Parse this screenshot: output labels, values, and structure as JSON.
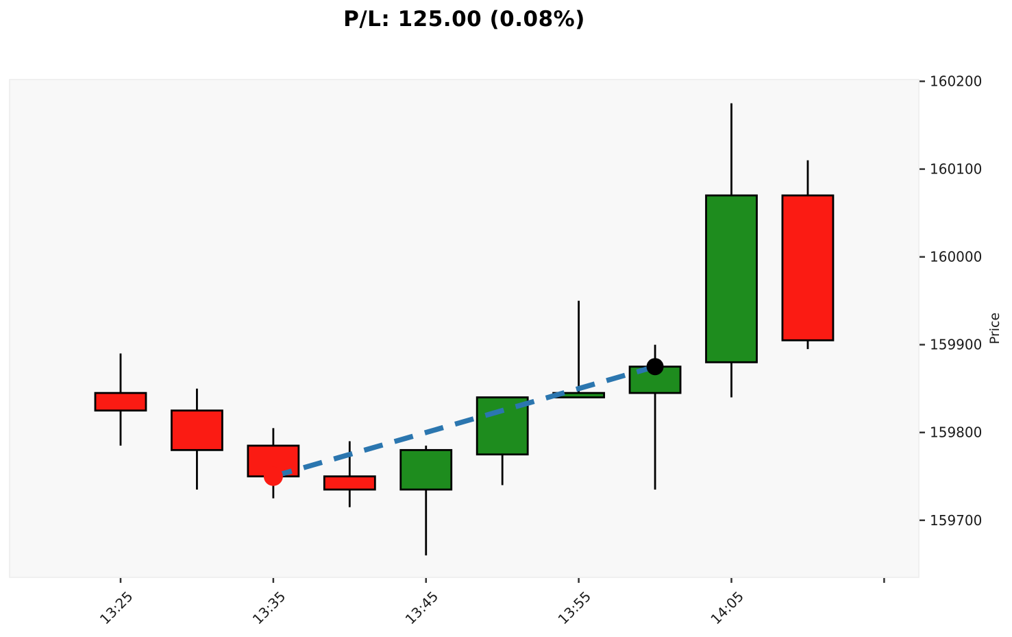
{
  "chart_data": {
    "type": "candlestick",
    "title": "P/L: 125.00 (0.08%)",
    "ylabel": "Price",
    "ylabel_side": "right",
    "grid": false,
    "legend": false,
    "y_ticks": [
      160200,
      160100,
      160000,
      159900,
      159800,
      159700
    ],
    "ylim": [
      159635,
      160202
    ],
    "x_ticks": [
      {
        "index": 0,
        "label": "13:25"
      },
      {
        "index": 2,
        "label": "13:35"
      },
      {
        "index": 4,
        "label": "13:45"
      },
      {
        "index": 6,
        "label": "13:55"
      },
      {
        "index": 8,
        "label": "14:05"
      },
      {
        "index": 10,
        "label": ""
      }
    ],
    "candles": [
      {
        "time": "13:25",
        "open": 159845,
        "high": 159890,
        "low": 159785,
        "close": 159825,
        "direction": "down"
      },
      {
        "time": "13:30",
        "open": 159825,
        "high": 159850,
        "low": 159735,
        "close": 159780,
        "direction": "down"
      },
      {
        "time": "13:35",
        "open": 159785,
        "high": 159805,
        "low": 159725,
        "close": 159750,
        "direction": "down"
      },
      {
        "time": "13:40",
        "open": 159750,
        "high": 159790,
        "low": 159715,
        "close": 159735,
        "direction": "down"
      },
      {
        "time": "13:45",
        "open": 159735,
        "high": 159785,
        "low": 159660,
        "close": 159780,
        "direction": "up"
      },
      {
        "time": "13:50",
        "open": 159775,
        "high": 159840,
        "low": 159740,
        "close": 159840,
        "direction": "up"
      },
      {
        "time": "13:55",
        "open": 159840,
        "high": 159950,
        "low": 159840,
        "close": 159845,
        "direction": "up"
      },
      {
        "time": "14:00",
        "open": 159845,
        "high": 159900,
        "low": 159735,
        "close": 159875,
        "direction": "up"
      },
      {
        "time": "14:05",
        "open": 159880,
        "high": 160175,
        "low": 159840,
        "close": 160070,
        "direction": "up"
      },
      {
        "time": "14:10",
        "open": 160070,
        "high": 160110,
        "low": 159895,
        "close": 159905,
        "direction": "down"
      }
    ],
    "trade": {
      "entry": {
        "time": "13:35",
        "price": 159750
      },
      "exit": {
        "time": "14:00",
        "price": 159875
      },
      "pl": "125.00",
      "pl_pct": "0.08%"
    },
    "colors": {
      "up": "#1e8c1e",
      "down": "#fb1b13",
      "wick": "#000000",
      "body_border": "#000000",
      "trade_line": "#2b76af",
      "entry_marker": "#fb1b13",
      "exit_marker": "#000000",
      "plot_background": "#f8f8f8",
      "plot_border": "#ececec",
      "tick": "#333333",
      "tick_label": "#1a1a1a"
    }
  }
}
